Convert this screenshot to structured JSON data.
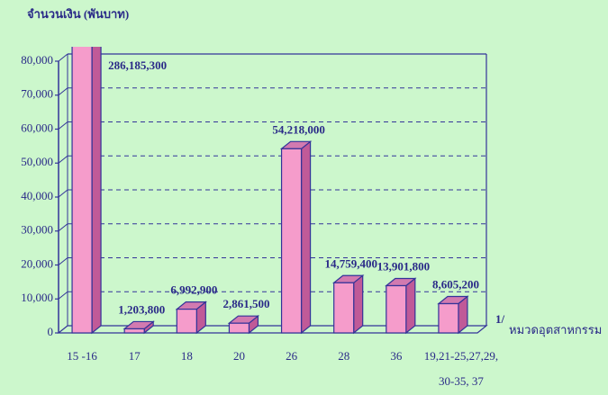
{
  "chart_data": {
    "type": "bar3d",
    "y_label": "จำนวนเงิน (พันบาท)",
    "x_label": "หมวดอุตสาหกรรม",
    "x_label_note": "1/",
    "categories": [
      "15 -16",
      "17",
      "18",
      "20",
      "26",
      "28",
      "36",
      "19,21-25,27,29,\n30-35, 37"
    ],
    "values": [
      286185.3,
      1203.8,
      6992.9,
      2861.5,
      54218,
      14759.4,
      13901.8,
      8605.2
    ],
    "value_labels": [
      "286,185,300",
      "1,203,800",
      "6,992,900",
      "2,861,500",
      "54,218,000",
      "14,759,400",
      "13,901,800",
      "8,605,200"
    ],
    "color": "#f59ccb",
    "ylim": [
      0,
      80000
    ],
    "yticks": [
      0,
      {
        "value": 10000,
        "label": "10,000"
      },
      {
        "value": 20000,
        "label": "20,000"
      },
      {
        "value": 30000,
        "label": "30,000"
      },
      {
        "value": 40000,
        "label": "40,000"
      },
      {
        "value": 50000,
        "label": "50,000"
      },
      {
        "value": 60000,
        "label": "60,000"
      },
      {
        "value": 70000,
        "label": "70,000"
      },
      {
        "value": 80000,
        "label": "80,000"
      }
    ],
    "grid": true
  }
}
